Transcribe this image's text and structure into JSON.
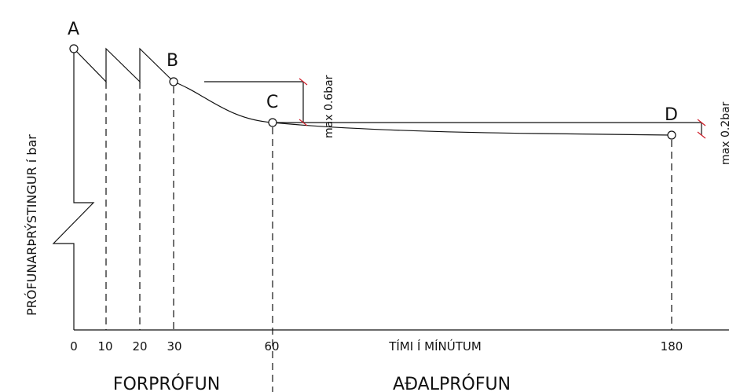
{
  "diagram": {
    "y_axis_label": "PRÓFUNARÞRÝSTINGUR í bar",
    "x_axis_label": "TÍMI Í MÍNÚTUM",
    "x_tick_labels": [
      "0",
      "10",
      "20",
      "30",
      "60",
      "180"
    ],
    "points": [
      {
        "label": "A",
        "time_min": 0
      },
      {
        "label": "B",
        "time_min": 30
      },
      {
        "label": "C",
        "time_min": 60
      },
      {
        "label": "D",
        "time_min": 180
      }
    ],
    "annotations": {
      "pre_test_drop": "max 0.6bar",
      "main_test_drop": "max 0.2bar"
    },
    "phases": {
      "pre_test": "FORPRÓFUN",
      "main_test": "AÐALPRÓFUN"
    },
    "colors": {
      "line": "#111111",
      "tick_marks": "#d21f2b"
    }
  }
}
